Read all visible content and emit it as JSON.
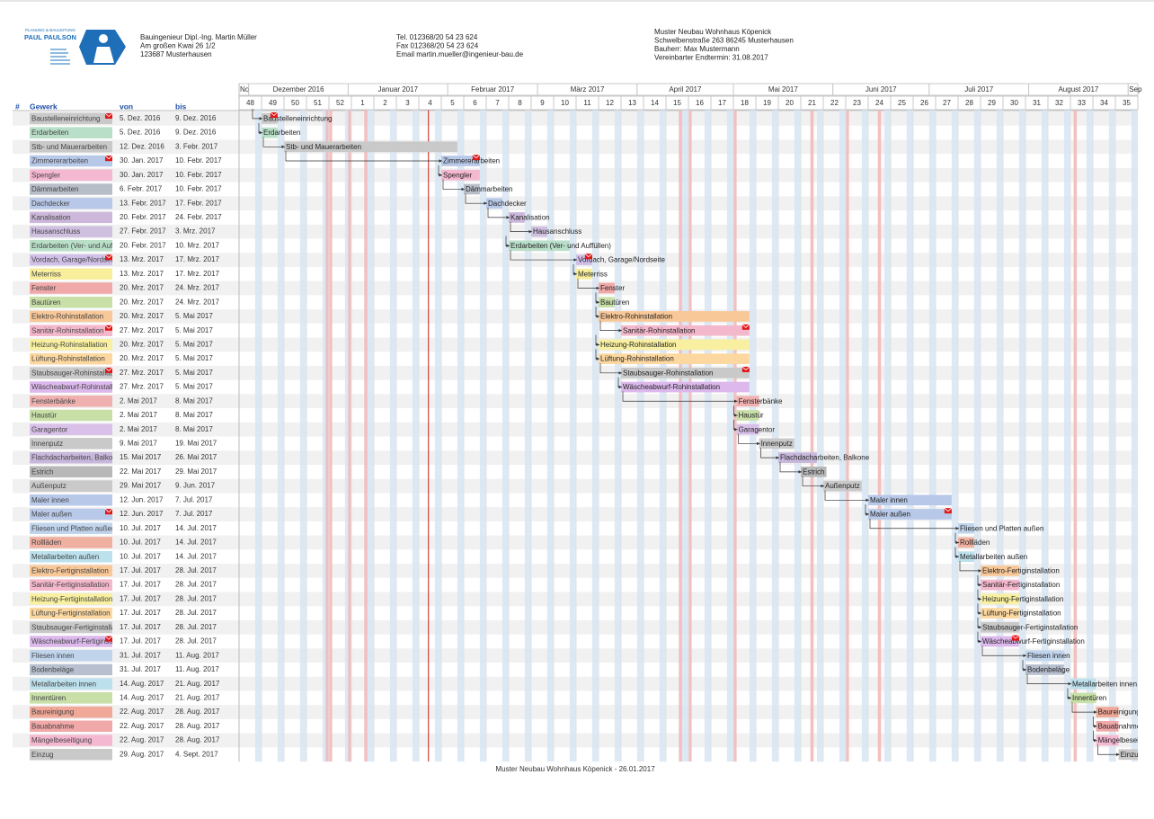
{
  "header": {
    "logo": {
      "tagline": "PLANUNG & BAULEITUNG",
      "name": "PAUL PAULSON"
    },
    "engineer": [
      "Bauingenieur Dipl.-Ing. Martin Müller",
      "Am großen Kwai 26 1/2",
      "123687 Musterhausen"
    ],
    "contact": [
      "Tel. 012368/20 54 23 624",
      "Fax 012368/20 54 23 624",
      "Email martin.mueller@ingenieur-bau.de"
    ],
    "project": [
      "Muster Neubau Wohnhaus Köpenick",
      "Schwelbenstraße 263 86245 Musterhausen",
      "Bauherr: Max Mustermann",
      "Vereinbarter Endtermin: 31.08.2017"
    ]
  },
  "table": {
    "columns": [
      "#",
      "Gewerk",
      "von",
      "bis"
    ]
  },
  "timeline": {
    "months": [
      "No",
      "Dezember 2016",
      "Januar 2017",
      "Februar 2017",
      "März 2017",
      "April 2017",
      "Mai 2017",
      "Juni 2017",
      "Juli 2017",
      "August 2017",
      "Sep"
    ],
    "weeks": [
      48,
      49,
      50,
      51,
      52,
      1,
      2,
      3,
      4,
      5,
      6,
      7,
      8,
      9,
      10,
      11,
      12,
      13,
      14,
      15,
      16,
      17,
      18,
      19,
      20,
      21,
      22,
      23,
      24,
      25,
      26,
      27,
      28,
      29,
      30,
      31,
      32,
      33,
      34,
      35
    ]
  },
  "tasks": [
    {
      "name": "Baustelleneinrichtung",
      "von": "5. Dez. 2016",
      "bis": "9. Dez. 2016",
      "color": "#c9c9c9",
      "note": true
    },
    {
      "name": "Erdarbeiten",
      "von": "5. Dez. 2016",
      "bis": "9. Dez. 2016",
      "color": "#b9dfc8"
    },
    {
      "name": "Stb- und Mauerarbeiten",
      "von": "12. Dez. 2016",
      "bis": "3. Febr. 2017",
      "color": "#c9c9c9"
    },
    {
      "name": "Zimmererarbeiten",
      "von": "30. Jan. 2017",
      "bis": "10. Febr. 2017",
      "color": "#b8c8e8",
      "note": true
    },
    {
      "name": "Spengler",
      "von": "30. Jan. 2017",
      "bis": "10. Febr. 2017",
      "color": "#f4b8d0"
    },
    {
      "name": "Dämmarbeiten",
      "von": "6. Febr. 2017",
      "bis": "10. Febr. 2017",
      "color": "#b8bec8"
    },
    {
      "name": "Dachdecker",
      "von": "13. Febr. 2017",
      "bis": "17. Febr. 2017",
      "color": "#b8c8e8"
    },
    {
      "name": "Kanalisation",
      "von": "20. Febr. 2017",
      "bis": "24. Febr. 2017",
      "color": "#cdb8dc"
    },
    {
      "name": "Hausanschluss",
      "von": "27. Febr. 2017",
      "bis": "3. Mrz. 2017",
      "color": "#d0c0e0"
    },
    {
      "name": "Erdarbeiten (Ver- und Auffüllen)",
      "von": "20. Febr. 2017",
      "bis": "10. Mrz. 2017",
      "color": "#b9dfc8"
    },
    {
      "name": "Vordach, Garage/Nordseite",
      "von": "13. Mrz. 2017",
      "bis": "17. Mrz. 2017",
      "color": "#d0c0e8",
      "note": true
    },
    {
      "name": "Meterriss",
      "von": "13. Mrz. 2017",
      "bis": "17. Mrz. 2017",
      "color": "#f8ee9c"
    },
    {
      "name": "Fenster",
      "von": "20. Mrz. 2017",
      "bis": "24. Mrz. 2017",
      "color": "#f0a8a8"
    },
    {
      "name": "Bautüren",
      "von": "20. Mrz. 2017",
      "bis": "24. Mrz. 2017",
      "color": "#c8e0a8"
    },
    {
      "name": "Elektro-Rohinstallation",
      "von": "20. Mrz. 2017",
      "bis": "5. Mai 2017",
      "color": "#f8c898"
    },
    {
      "name": "Sanitär-Rohinstallation",
      "von": "27. Mrz. 2017",
      "bis": "5. Mai 2017",
      "color": "#f4b8cc",
      "note": true
    },
    {
      "name": "Heizung-Rohinstallation",
      "von": "20. Mrz. 2017",
      "bis": "5. Mai 2017",
      "color": "#f8f0a0"
    },
    {
      "name": "Lüftung-Rohinstallation",
      "von": "20. Mrz. 2017",
      "bis": "5. Mai 2017",
      "color": "#fcd8a0"
    },
    {
      "name": "Staubsauger-Rohinstallation",
      "von": "27. Mrz. 2017",
      "bis": "5. Mai 2017",
      "color": "#c9c9c9",
      "note": true
    },
    {
      "name": "Wäscheabwurf-Rohinstallation",
      "von": "27. Mrz. 2017",
      "bis": "5. Mai 2017",
      "color": "#dcb8ec"
    },
    {
      "name": "Fensterbänke",
      "von": "2. Mai 2017",
      "bis": "8. Mai 2017",
      "color": "#f0b0b0"
    },
    {
      "name": "Haustür",
      "von": "2. Mai 2017",
      "bis": "8. Mai 2017",
      "color": "#c8e0a8"
    },
    {
      "name": "Garagentor",
      "von": "2. Mai 2017",
      "bis": "8. Mai 2017",
      "color": "#d8c0e8"
    },
    {
      "name": "Innenputz",
      "von": "9. Mai 2017",
      "bis": "19. Mai 2017",
      "color": "#c9c9c9"
    },
    {
      "name": "Flachdacharbeiten, Balkone",
      "von": "15. Mai 2017",
      "bis": "26. Mai 2017",
      "color": "#c8b8dc"
    },
    {
      "name": "Estrich",
      "von": "22. Mai 2017",
      "bis": "29. Mai 2017",
      "color": "#b8b8b8"
    },
    {
      "name": "Außenputz",
      "von": "29. Mai 2017",
      "bis": "9. Jun. 2017",
      "color": "#c9c9c9"
    },
    {
      "name": "Maler innen",
      "von": "12. Jun. 2017",
      "bis": "7. Jul. 2017",
      "color": "#b8c8e8"
    },
    {
      "name": "Maler außen",
      "von": "12. Jun. 2017",
      "bis": "7. Jul. 2017",
      "color": "#b8c8e8",
      "note": true
    },
    {
      "name": "Fliesen und Platten außen",
      "von": "10. Jul. 2017",
      "bis": "14. Jul. 2017",
      "color": "#c0d4ec"
    },
    {
      "name": "Rollläden",
      "von": "10. Jul. 2017",
      "bis": "14. Jul. 2017",
      "color": "#f0b0a0"
    },
    {
      "name": "Metallarbeiten außen",
      "von": "10. Jul. 2017",
      "bis": "14. Jul. 2017",
      "color": "#bce0ec"
    },
    {
      "name": "Elektro-Fertiginstallation",
      "von": "17. Jul. 2017",
      "bis": "28. Jul. 2017",
      "color": "#f8c898"
    },
    {
      "name": "Sanitär-Fertiginstallation",
      "von": "17. Jul. 2017",
      "bis": "28. Jul. 2017",
      "color": "#f4b8cc"
    },
    {
      "name": "Heizung-Fertiginstallation",
      "von": "17. Jul. 2017",
      "bis": "28. Jul. 2017",
      "color": "#f8f0a0"
    },
    {
      "name": "Lüftung-Fertiginstallation",
      "von": "17. Jul. 2017",
      "bis": "28. Jul. 2017",
      "color": "#fcd8a0"
    },
    {
      "name": "Staubsauger-Fertiginstallation",
      "von": "17. Jul. 2017",
      "bis": "28. Jul. 2017",
      "color": "#c9c9c9"
    },
    {
      "name": "Wäscheabwurf-Fertiginstallation",
      "von": "17. Jul. 2017",
      "bis": "28. Jul. 2017",
      "color": "#dcb8ec",
      "note": true
    },
    {
      "name": "Fliesen innen",
      "von": "31. Jul. 2017",
      "bis": "11. Aug. 2017",
      "color": "#c0d4ec"
    },
    {
      "name": "Bodenbeläge",
      "von": "31. Jul. 2017",
      "bis": "11. Aug. 2017",
      "color": "#b8c0d0"
    },
    {
      "name": "Metallarbeiten innen",
      "von": "14. Aug. 2017",
      "bis": "21. Aug. 2017",
      "color": "#bce0ec"
    },
    {
      "name": "Innentüren",
      "von": "14. Aug. 2017",
      "bis": "21. Aug. 2017",
      "color": "#c8e0a8"
    },
    {
      "name": "Baureinigung",
      "von": "22. Aug. 2017",
      "bis": "28. Aug. 2017",
      "color": "#f0a898"
    },
    {
      "name": "Bauabnahme",
      "von": "22. Aug. 2017",
      "bis": "28. Aug. 2017",
      "color": "#f0a8a8"
    },
    {
      "name": "Mängelbeseitigung",
      "von": "22. Aug. 2017",
      "bis": "28. Aug. 2017",
      "color": "#f4b8d0"
    },
    {
      "name": "Einzug",
      "von": "29. Aug. 2017",
      "bis": "4. Sept. 2017",
      "color": "#c9c9c9"
    }
  ],
  "footer": "Muster Neubau Wohnhaus Köpenick - 26.01.2017"
}
